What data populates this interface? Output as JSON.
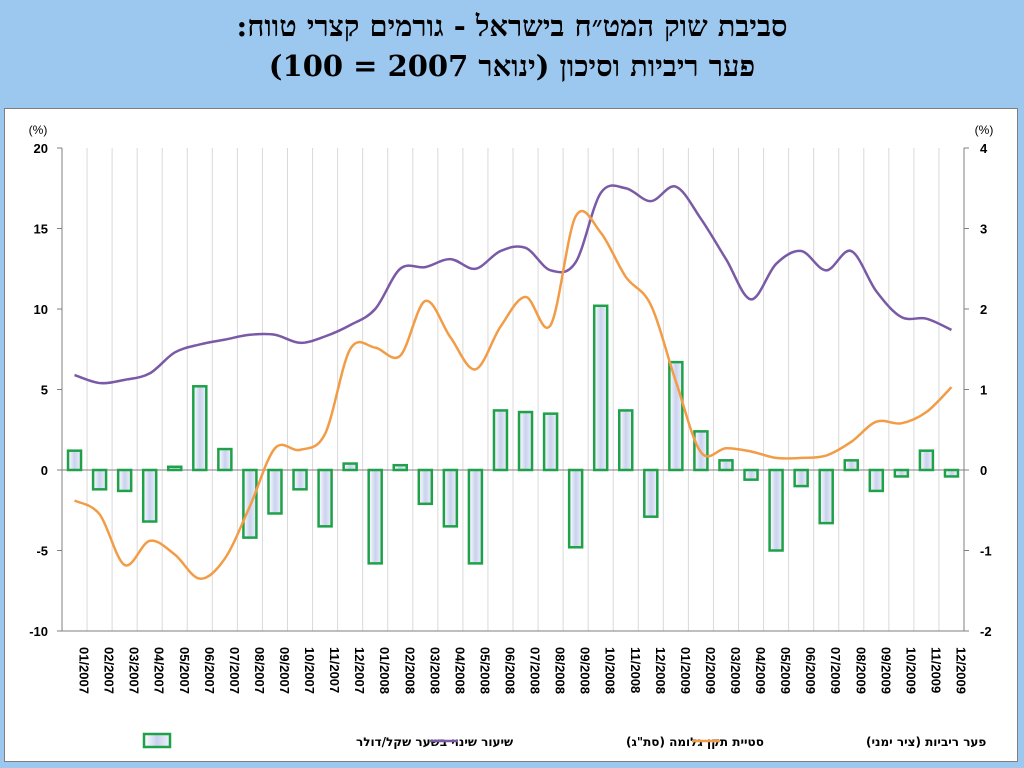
{
  "title": {
    "line1": "סביבת שוק המט״ח בישראל - גורמים קצרי טווח:",
    "line2": "פער ריביות וסיכון (ינואר 2007 = 100)"
  },
  "chart_data": {
    "type": "bar+line",
    "left_axis": {
      "unit": "(%)",
      "ylim": [
        -10,
        20
      ],
      "ticks": [
        -10,
        -5,
        0,
        5,
        10,
        15,
        20
      ]
    },
    "right_axis": {
      "unit": "(%)",
      "ylim": [
        -2,
        4
      ],
      "ticks": [
        -2,
        -1,
        0,
        1,
        2,
        3,
        4
      ]
    },
    "categories": [
      "01/2007",
      "02/2007",
      "03/2007",
      "04/2007",
      "05/2007",
      "06/2007",
      "07/2007",
      "08/2007",
      "09/2007",
      "10/2007",
      "11/2007",
      "12/2007",
      "01/2008",
      "02/2008",
      "03/2008",
      "04/2008",
      "05/2008",
      "06/2008",
      "07/2008",
      "08/2008",
      "09/2008",
      "10/2008",
      "11/2008",
      "12/2008",
      "01/2009",
      "02/2009",
      "03/2009",
      "04/2009",
      "05/2009",
      "06/2009",
      "07/2009",
      "08/2009",
      "09/2009",
      "10/2009",
      "11/2009",
      "12/2009"
    ],
    "series": [
      {
        "name": "שיעור שינוי בשער שקל/דולר",
        "kind": "bar",
        "axis": "left",
        "color": "#1fa14a",
        "values": [
          1.2,
          -1.2,
          -1.3,
          -3.2,
          0.2,
          5.2,
          1.3,
          -4.2,
          -2.7,
          -1.2,
          -3.5,
          0.4,
          -5.8,
          0.3,
          -2.1,
          -3.5,
          -5.8,
          3.7,
          3.6,
          3.5,
          -4.8,
          10.2,
          3.7,
          -2.9,
          6.7,
          2.4,
          0.6,
          -0.6,
          -5.0,
          -1.0,
          -3.3,
          0.6,
          -1.3,
          -0.4,
          1.2,
          -0.4
        ]
      },
      {
        "name": "סטיית תקן גלומה (סת\"ג)",
        "kind": "line",
        "axis": "left",
        "color": "#7a5aa6",
        "values": [
          5.9,
          5.4,
          5.6,
          6.0,
          7.3,
          7.8,
          8.1,
          8.4,
          8.4,
          7.9,
          8.3,
          9.0,
          10.0,
          12.5,
          12.6,
          13.1,
          12.5,
          13.6,
          13.8,
          12.4,
          12.9,
          17.2,
          17.5,
          16.7,
          17.6,
          15.6,
          13.1,
          10.6,
          12.8,
          13.6,
          12.4,
          13.6,
          11.1,
          9.5,
          9.4,
          8.7
        ]
      },
      {
        "name": "פער ריביות (ציר ימני)",
        "kind": "line",
        "axis": "right",
        "color": "#f39c47",
        "values": [
          -0.38,
          -0.55,
          -1.18,
          -0.88,
          -1.05,
          -1.35,
          -1.1,
          -0.45,
          0.27,
          0.25,
          0.45,
          1.5,
          1.52,
          1.42,
          2.1,
          1.65,
          1.25,
          1.78,
          2.15,
          1.8,
          3.15,
          2.95,
          2.4,
          2.05,
          1.1,
          0.22,
          0.27,
          0.23,
          0.15,
          0.15,
          0.18,
          0.35,
          0.6,
          0.58,
          0.72,
          1.03
        ]
      }
    ],
    "legend_position": "bottom",
    "grid": "vertical"
  }
}
